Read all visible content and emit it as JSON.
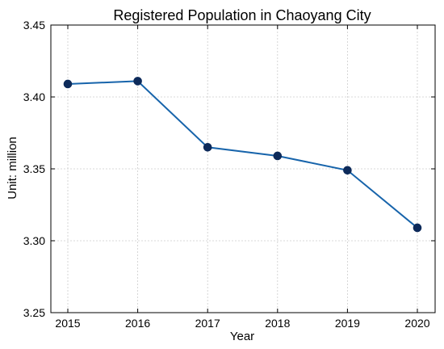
{
  "chart_data": {
    "type": "line",
    "title": "Registered Population in Chaoyang City",
    "xlabel": "Year",
    "ylabel": "Unit: million",
    "categories": [
      "2015",
      "2016",
      "2017",
      "2018",
      "2019",
      "2020"
    ],
    "series": [
      {
        "values": [
          3.409,
          3.411,
          3.365,
          3.359,
          3.349,
          3.309
        ]
      }
    ],
    "ylim": [
      3.25,
      3.45
    ],
    "yticks": [
      "3.25",
      "3.30",
      "3.35",
      "3.40",
      "3.45"
    ],
    "grid": true,
    "line_color": "#1764ab",
    "marker_color": "#0d2a5a",
    "grid_color": "#cccccc"
  }
}
